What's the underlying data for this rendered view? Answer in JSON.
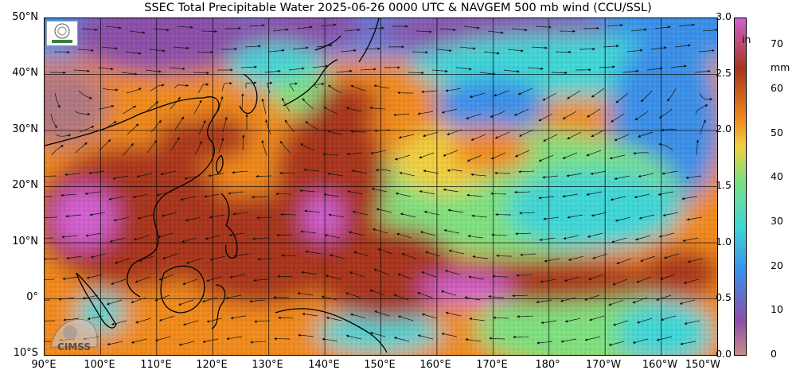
{
  "title": "SSEC Total Precipitable Water  2025-06-26 0000 UTC & NAVGEM 500 mb wind (CCU/SSL)",
  "lat_ticks": [
    "50°N",
    "40°N",
    "30°N",
    "20°N",
    "10°N",
    "0°",
    "10°S"
  ],
  "lon_ticks": [
    "90°E",
    "100°E",
    "110°E",
    "120°E",
    "130°E",
    "140°E",
    "150°E",
    "160°E",
    "170°E",
    "180°",
    "170°W",
    "160°W",
    "150°W"
  ],
  "colorbar": {
    "inch_unit": "in",
    "mm_unit": "mm",
    "inch_ticks": [
      "3.0",
      "2.5",
      "2.0",
      "1.5",
      "1.0",
      "0.5",
      "0.0"
    ],
    "inch_values": [
      3.0,
      2.5,
      2.0,
      1.5,
      1.0,
      0.5,
      0.0
    ],
    "mm_ticks": [
      "70",
      "60",
      "50",
      "40",
      "30",
      "20",
      "10",
      "0"
    ],
    "mm_values": [
      70,
      60,
      50,
      40,
      30,
      20,
      10,
      0
    ],
    "mm_max": 76,
    "colors": {
      "dry": "#c98c8c",
      "very_low": "#8b4fa8",
      "low": "#3b8fe8",
      "mid_low": "#3fd6d6",
      "mid": "#7fe07f",
      "mid_high": "#f0d040",
      "high": "#f08a1e",
      "very_high": "#a8341c",
      "max": "#d060d0"
    }
  },
  "logos": {
    "cimss": "CIMSS",
    "ssec_icon": "ssec-logo-icon"
  },
  "map_extent": {
    "lon_min": 90,
    "lon_max": 210,
    "lat_min": -10,
    "lat_max": 50
  }
}
